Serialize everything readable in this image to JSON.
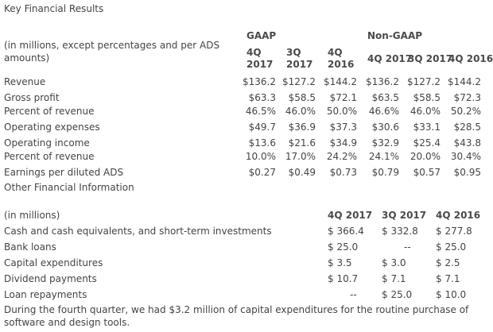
{
  "title": "Key Financial Results",
  "t1": {
    "group_gaap": "GAAP",
    "group_nongaap": "Non-GAAP",
    "note": "(in millions, except percentages and per ADS amounts)",
    "gaap_cols": [
      {
        "q": "4Q",
        "y": "2017"
      },
      {
        "q": "3Q",
        "y": "2017"
      },
      {
        "q": "4Q",
        "y": "2016"
      }
    ],
    "nongaap_cols": [
      "4Q 2017",
      "3Q 2017",
      "4Q 2016"
    ],
    "rows": [
      {
        "label": "Revenue",
        "v": [
          "$136.2",
          "$127.2",
          "$144.2",
          "$136.2",
          "$127.2",
          "$144.2"
        ]
      },
      {
        "label": "Gross profit",
        "v": [
          "$63.3",
          "$58.5",
          "$72.1",
          "$63.5",
          "$58.5",
          "$72.3"
        ]
      },
      {
        "label": "Percent of revenue",
        "v": [
          "46.5%",
          "46.0%",
          "50.0%",
          "46.6%",
          "46.0%",
          "50.2%"
        ]
      },
      {
        "label": "Operating expenses",
        "v": [
          "$49.7",
          "$36.9",
          "$37.3",
          "$30.6",
          "$33.1",
          "$28.5"
        ]
      },
      {
        "label": "Operating income",
        "v": [
          "$13.6",
          "$21.6",
          "$34.9",
          "$32.9",
          "$25.4",
          "$43.8"
        ]
      },
      {
        "label": "Percent of revenue",
        "v": [
          "10.0%",
          "17.0%",
          "24.2%",
          "24.1%",
          "20.0%",
          "30.4%"
        ]
      },
      {
        "label": "Earnings per diluted ADS",
        "v": [
          "$0.27",
          "$0.49",
          "$0.73",
          "$0.79",
          "$0.57",
          "$0.95"
        ]
      }
    ]
  },
  "other_title": "Other Financial Information",
  "t2": {
    "note": "(in millions)",
    "cols": [
      "4Q 2017",
      "3Q 2017",
      "4Q 2016"
    ],
    "rows": [
      {
        "label": "Cash and cash equivalents, and short-term investments",
        "v": [
          "$ 366.4",
          "$ 332.8",
          "$ 277.8"
        ]
      },
      {
        "label": "Bank loans",
        "v": [
          "$ 25.0",
          "--",
          "$ 25.0"
        ]
      },
      {
        "label": "Capital expenditures",
        "v": [
          "$ 3.5",
          "$ 3.0",
          "$ 2.5"
        ]
      },
      {
        "label": "Dividend payments",
        "v": [
          "$ 10.7",
          "$ 7.1",
          "$ 7.1"
        ]
      },
      {
        "label": "Loan repayments",
        "v": [
          "--",
          "$ 25.0",
          "$ 10.0"
        ]
      }
    ]
  },
  "footer": "During the fourth quarter, we had $3.2 million of capital expenditures for the routine purchase of software and design tools."
}
